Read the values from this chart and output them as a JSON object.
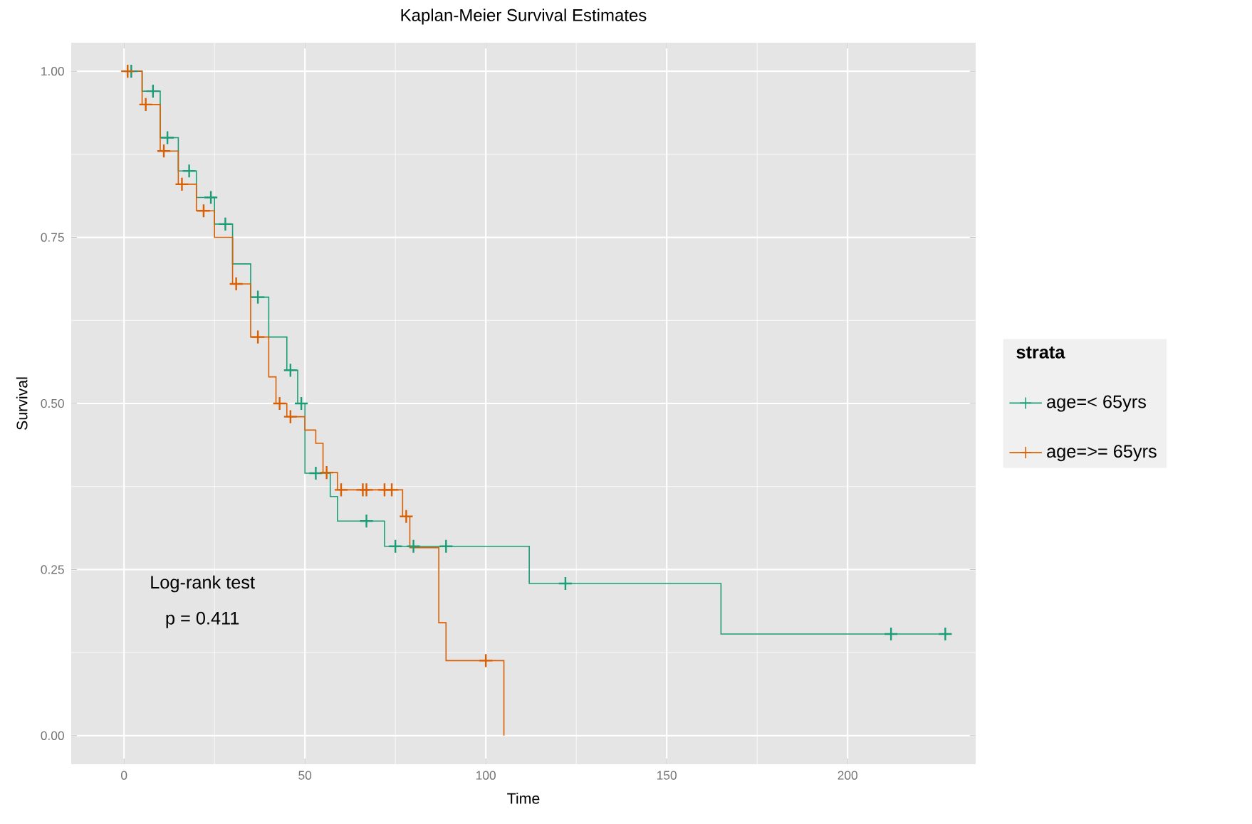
{
  "chart_data": {
    "type": "step",
    "title": "Kaplan-Meier Survival Estimates",
    "xlabel": "Time",
    "ylabel": "Survival",
    "legend_title": "strata",
    "xlim": [
      -14.6,
      235.4
    ],
    "ylim": [
      -0.043,
      1.043
    ],
    "xticks": [
      0,
      50,
      100,
      150,
      200
    ],
    "yticks": [
      {
        "value": 0,
        "label": "0.00"
      },
      {
        "value": 0.25,
        "label": "0.25"
      },
      {
        "value": 0.5,
        "label": "0.50"
      },
      {
        "value": 0.75,
        "label": "0.75"
      },
      {
        "value": 1,
        "label": "1.00"
      }
    ],
    "grid": true,
    "legend": "right",
    "annotations": [
      "Log-rank test",
      "p = 0.411"
    ],
    "series": [
      {
        "name": "age=< 65yrs",
        "color": "#1b9e77",
        "x": [
          0,
          5,
          10,
          15,
          20,
          25,
          30,
          35,
          40,
          45,
          48,
          50,
          57,
          59,
          72,
          112,
          165,
          227
        ],
        "values": [
          1.0,
          0.97,
          0.9,
          0.85,
          0.81,
          0.77,
          0.71,
          0.66,
          0.6,
          0.55,
          0.5,
          0.395,
          0.36,
          0.323,
          0.285,
          0.229,
          0.153,
          0.153
        ]
      },
      {
        "name": "age=>= 65yrs",
        "color": "#d95f02",
        "x": [
          0,
          5,
          10,
          15,
          20,
          25,
          30,
          35,
          40,
          42,
          45,
          50,
          53,
          55,
          59,
          77,
          79,
          87,
          89,
          105
        ],
        "values": [
          1.0,
          0.95,
          0.88,
          0.83,
          0.79,
          0.75,
          0.68,
          0.6,
          0.54,
          0.5,
          0.48,
          0.46,
          0.44,
          0.396,
          0.37,
          0.33,
          0.283,
          0.17,
          0.113,
          0.0
        ]
      },
      {
        "type": "scatter",
        "marker": "cross",
        "color": "#1b9e77",
        "x": [
          2,
          8,
          12,
          18,
          24,
          28,
          37,
          46,
          49,
          53,
          67,
          75,
          80,
          89,
          122,
          212,
          227
        ],
        "values": [
          1.0,
          0.97,
          0.9,
          0.85,
          0.81,
          0.77,
          0.66,
          0.55,
          0.5,
          0.395,
          0.323,
          0.285,
          0.285,
          0.285,
          0.229,
          0.153,
          0.153
        ]
      },
      {
        "type": "scatter",
        "marker": "cross",
        "color": "#d95f02",
        "x": [
          1,
          6,
          11,
          16,
          22,
          31,
          37,
          43,
          46,
          56,
          60,
          66,
          67,
          72,
          74,
          78,
          100
        ],
        "values": [
          1.0,
          0.95,
          0.88,
          0.83,
          0.79,
          0.68,
          0.6,
          0.5,
          0.48,
          0.396,
          0.37,
          0.37,
          0.37,
          0.37,
          0.37,
          0.33,
          0.113
        ]
      }
    ]
  }
}
